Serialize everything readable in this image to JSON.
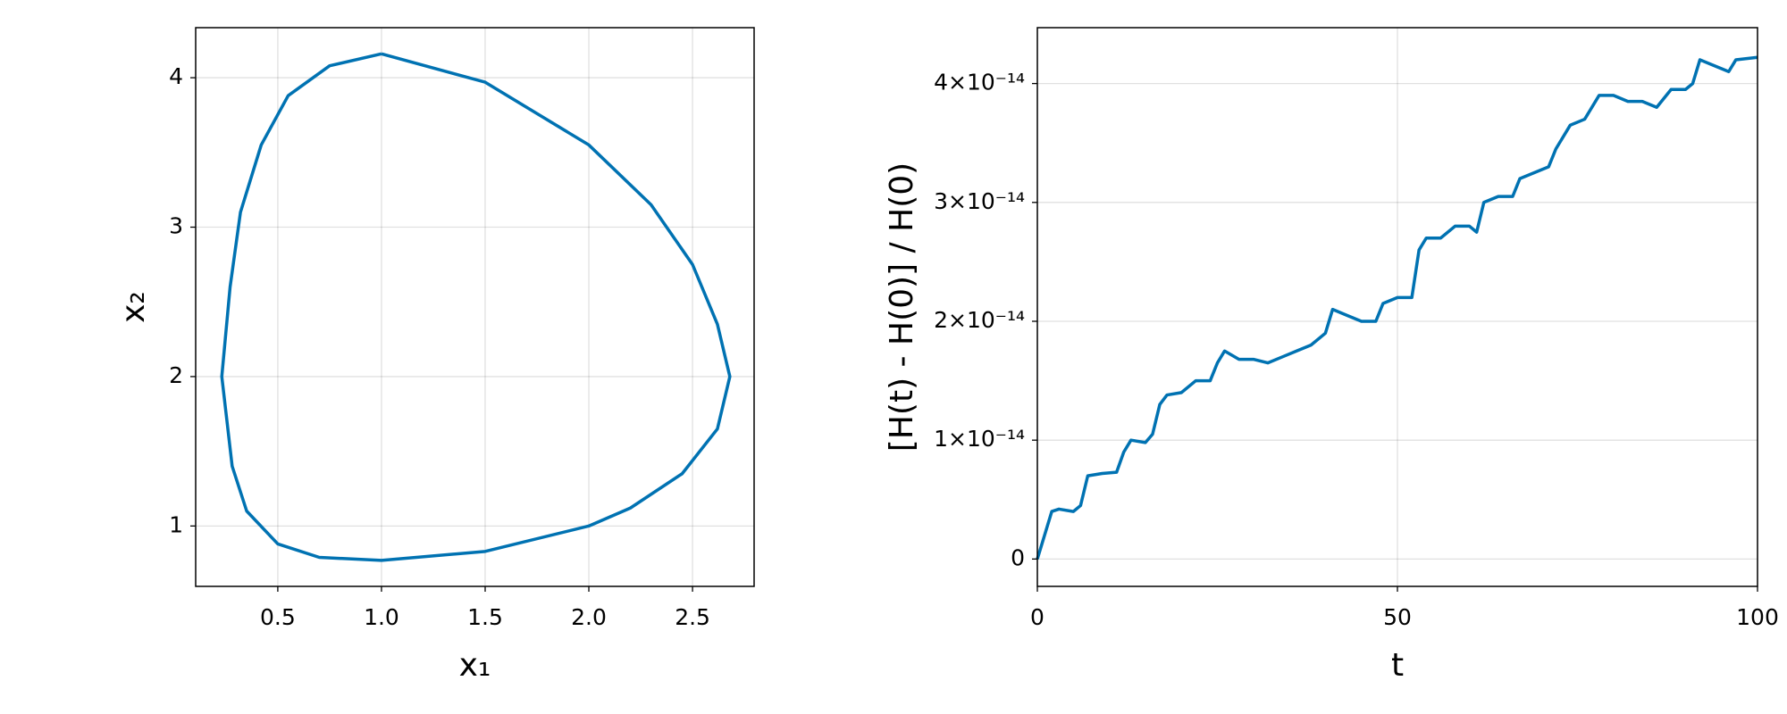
{
  "chart_data": [
    {
      "type": "line",
      "xlabel": "x₁",
      "ylabel": "x₂",
      "color": "#0072b2",
      "grid": true,
      "x": [
        1.0,
        1.5,
        2.0,
        2.3,
        2.5,
        2.62,
        2.68,
        2.62,
        2.45,
        2.2,
        2.0,
        1.5,
        1.0,
        0.7,
        0.5,
        0.35,
        0.28,
        0.23,
        0.27,
        0.32,
        0.42,
        0.55,
        0.75,
        1.0
      ],
      "values": [
        4.16,
        3.97,
        3.55,
        3.15,
        2.75,
        2.35,
        2.0,
        1.65,
        1.35,
        1.12,
        1.0,
        0.83,
        0.77,
        0.79,
        0.88,
        1.1,
        1.4,
        2.0,
        2.6,
        3.1,
        3.55,
        3.88,
        4.08,
        4.16
      ],
      "xlim": [
        0.104,
        2.797
      ],
      "ylim": [
        0.596,
        4.335
      ],
      "xticks": [
        0.5,
        {
          "value": 1,
          "label": "1.0"
        },
        1.5,
        {
          "value": 2,
          "label": "2.0"
        },
        2.5
      ],
      "yticks": [
        1,
        2,
        3,
        4
      ]
    },
    {
      "type": "line",
      "xlabel": "t",
      "ylabel": "[H(t) - H(0)] / H(0)",
      "color": "#0072b2",
      "grid": true,
      "x": [
        0,
        1,
        2,
        3,
        5,
        6,
        7,
        9,
        11,
        12,
        13,
        15,
        16,
        17,
        18,
        20,
        22,
        24,
        25,
        26,
        28,
        30,
        32,
        34,
        36,
        38,
        40,
        41,
        43,
        45,
        47,
        48,
        50,
        52,
        53,
        54,
        56,
        58,
        60,
        61,
        62,
        64,
        66,
        67,
        69,
        71,
        72,
        74,
        76,
        78,
        80,
        82,
        84,
        86,
        88,
        90,
        91,
        92,
        94,
        96,
        97,
        100
      ],
      "values": [
        0,
        2e-15,
        4e-15,
        4.2e-15,
        4e-15,
        4.5e-15,
        7e-15,
        7.2e-15,
        7.3e-15,
        9e-15,
        1e-14,
        9.8e-15,
        1.05e-14,
        1.3e-14,
        1.38e-14,
        1.4e-14,
        1.5e-14,
        1.5e-14,
        1.65e-14,
        1.75e-14,
        1.68e-14,
        1.68e-14,
        1.65e-14,
        1.7e-14,
        1.75e-14,
        1.8e-14,
        1.9e-14,
        2.1e-14,
        2.05e-14,
        2e-14,
        2e-14,
        2.15e-14,
        2.2e-14,
        2.2e-14,
        2.6e-14,
        2.7e-14,
        2.7e-14,
        2.8e-14,
        2.8e-14,
        2.75e-14,
        3e-14,
        3.05e-14,
        3.05e-14,
        3.2e-14,
        3.25e-14,
        3.3e-14,
        3.45e-14,
        3.65e-14,
        3.7e-14,
        3.9e-14,
        3.9e-14,
        3.85e-14,
        3.85e-14,
        3.8e-14,
        3.95e-14,
        3.95e-14,
        4e-14,
        4.2e-14,
        4.15e-14,
        4.1e-14,
        4.2e-14,
        4.22e-14
      ],
      "xlim": [
        0,
        100
      ],
      "ylim": [
        -2.3e-15,
        4.47e-14
      ],
      "xticks": [
        0,
        50,
        100
      ],
      "yticks": [
        0,
        {
          "value": 1e-14,
          "label": "1×10⁻¹⁴"
        },
        {
          "value": 2e-14,
          "label": "2×10⁻¹⁴"
        },
        {
          "value": 3e-14,
          "label": "3×10⁻¹⁴"
        },
        {
          "value": 4e-14,
          "label": "4×10⁻¹⁴"
        }
      ]
    }
  ]
}
